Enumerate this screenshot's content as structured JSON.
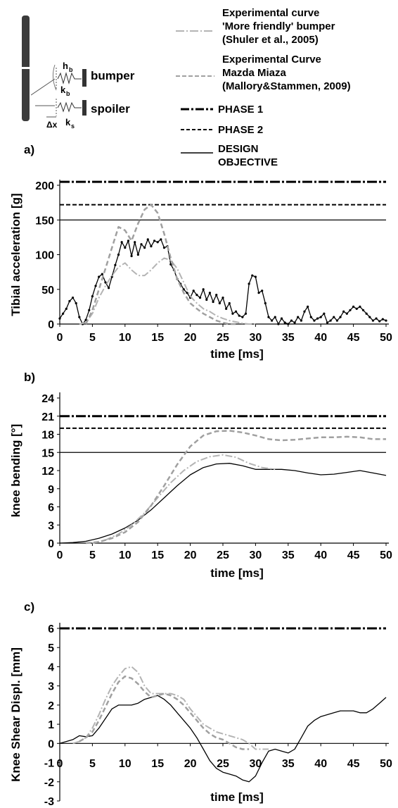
{
  "legend": {
    "exp1_line1": "Experimental curve",
    "exp1_line2": "'More friendly' bumper",
    "exp1_line3": "(Shuler et al., 2005)",
    "exp2_line1": "Experimental Curve",
    "exp2_line2": "Mazda Miaza",
    "exp2_line3": "(Mallory&Stammen, 2009)",
    "phase1": "PHASE 1",
    "phase2": "PHASE 2",
    "design_line1": "DESIGN",
    "design_line2": "OBJECTIVE"
  },
  "schematic": {
    "bumper": "bumper",
    "spoiler": "spoiler",
    "hb": "h",
    "hb_sub": "b",
    "kb": "k",
    "kb_sub": "b",
    "ks": "k",
    "ks_sub": "s",
    "dx": "Δx"
  },
  "colors": {
    "measured": "#000000",
    "exp1": "#b4b4b4",
    "exp2": "#a0a0a0",
    "thresholds": "#000000"
  },
  "chart_data": [
    {
      "type": "line",
      "panel_label": "a)",
      "xlabel": "time [ms]",
      "ylabel": "Tibial acceleration [g]",
      "xlim": [
        0,
        50
      ],
      "ylim": [
        0,
        200
      ],
      "xticks": [
        0,
        5,
        10,
        15,
        20,
        25,
        30,
        35,
        40,
        45,
        50
      ],
      "xtick_labels": [
        "0",
        "5",
        "10",
        "15",
        "20",
        "25",
        "30",
        "35",
        "40",
        "45",
        "50"
      ],
      "yticks": [
        0,
        50,
        100,
        150,
        200
      ],
      "ytick_labels": [
        "0",
        "50",
        "100",
        "150",
        "200"
      ],
      "thresholds": [
        {
          "name": "PHASE 1",
          "style": "dashdot",
          "y": 205
        },
        {
          "name": "PHASE 2",
          "style": "dash",
          "y": 172
        },
        {
          "name": "DESIGN OBJECTIVE",
          "style": "solid",
          "y": 150
        }
      ],
      "series": [
        {
          "style": "measured",
          "markers": true,
          "x": [
            0,
            0.5,
            1,
            1.5,
            2,
            2.5,
            3,
            3.5,
            4,
            4.5,
            5,
            5.5,
            6,
            6.5,
            7,
            7.5,
            8,
            8.5,
            9,
            9.5,
            10,
            10.5,
            11,
            11.5,
            12,
            12.5,
            13,
            13.5,
            14,
            14.5,
            15,
            15.5,
            16,
            16.5,
            17,
            17.5,
            18,
            18.5,
            19,
            19.5,
            20,
            20.5,
            21,
            21.5,
            22,
            22.5,
            23,
            23.5,
            24,
            24.5,
            25,
            25.5,
            26,
            26.5,
            27,
            27.5,
            28,
            28.5,
            29,
            29.5,
            30,
            30.5,
            31,
            31.5,
            32,
            32.5,
            33,
            33.5,
            34,
            34.5,
            35,
            35.5,
            36,
            36.5,
            37,
            37.5,
            38,
            38.5,
            39,
            39.5,
            40,
            40.5,
            41,
            41.5,
            42,
            42.5,
            43,
            43.5,
            44,
            44.5,
            45,
            45.5,
            46,
            46.5,
            47,
            47.5,
            48,
            48.5,
            49,
            49.5,
            50
          ],
          "y": [
            8,
            15,
            22,
            33,
            38,
            30,
            10,
            0,
            6,
            20,
            40,
            55,
            68,
            72,
            60,
            52,
            68,
            85,
            100,
            118,
            110,
            120,
            98,
            118,
            100,
            115,
            110,
            122,
            112,
            120,
            118,
            122,
            110,
            112,
            86,
            78,
            65,
            58,
            50,
            45,
            38,
            48,
            42,
            38,
            50,
            35,
            45,
            32,
            42,
            30,
            38,
            22,
            30,
            15,
            18,
            12,
            10,
            15,
            58,
            70,
            68,
            45,
            48,
            30,
            10,
            5,
            10,
            0,
            8,
            2,
            0,
            5,
            2,
            10,
            5,
            18,
            25,
            10,
            5,
            8,
            10,
            15,
            2,
            5,
            10,
            5,
            10,
            18,
            15,
            20,
            25,
            22,
            25,
            20,
            15,
            10,
            5,
            8,
            4,
            7,
            5
          ]
        },
        {
          "style": "exp1",
          "markers": false,
          "x": [
            3,
            4,
            5,
            6,
            7,
            8,
            9,
            10,
            11,
            12,
            13,
            14,
            15,
            16,
            17,
            18,
            19,
            20,
            21,
            22,
            23,
            24,
            25,
            26,
            27,
            28,
            29,
            30
          ],
          "y": [
            0,
            2,
            15,
            38,
            55,
            70,
            82,
            88,
            78,
            70,
            70,
            78,
            88,
            95,
            92,
            80,
            60,
            40,
            30,
            22,
            18,
            12,
            8,
            5,
            3,
            1,
            0,
            0
          ]
        },
        {
          "style": "exp2",
          "markers": false,
          "x": [
            4,
            5,
            6,
            7,
            8,
            9,
            10,
            11,
            12,
            13,
            14,
            15,
            16,
            17,
            18,
            19,
            20,
            21,
            22,
            23,
            24,
            25,
            26,
            27
          ],
          "y": [
            0,
            20,
            50,
            80,
            110,
            140,
            135,
            120,
            145,
            165,
            172,
            160,
            130,
            95,
            65,
            45,
            30,
            22,
            15,
            10,
            5,
            2,
            0,
            0
          ]
        }
      ]
    },
    {
      "type": "line",
      "panel_label": "b)",
      "xlabel": "time [ms]",
      "ylabel": "knee bending [°]",
      "xlim": [
        0,
        50
      ],
      "ylim": [
        0,
        24
      ],
      "xticks": [
        0,
        5,
        10,
        15,
        20,
        25,
        30,
        35,
        40,
        45,
        50
      ],
      "xtick_labels": [
        "0",
        "5",
        "10",
        "15",
        "20",
        "25",
        "30",
        "35",
        "40",
        "45",
        "50"
      ],
      "yticks": [
        0,
        3,
        6,
        9,
        12,
        15,
        18,
        21,
        24
      ],
      "ytick_labels": [
        "0",
        "3",
        "6",
        "9",
        "12",
        "15",
        "18",
        "21",
        "24"
      ],
      "thresholds": [
        {
          "name": "PHASE 1",
          "style": "dashdot",
          "y": 21
        },
        {
          "name": "PHASE 2",
          "style": "dash",
          "y": 19
        },
        {
          "name": "DESIGN OBJECTIVE",
          "style": "solid",
          "y": 15
        }
      ],
      "series": [
        {
          "style": "measured",
          "markers": false,
          "x": [
            0,
            2,
            4,
            6,
            8,
            10,
            12,
            14,
            16,
            18,
            20,
            22,
            24,
            26,
            28,
            30,
            32,
            34,
            36,
            38,
            40,
            42,
            44,
            46,
            48,
            50
          ],
          "y": [
            0,
            0.1,
            0.3,
            0.8,
            1.5,
            2.5,
            3.8,
            5.5,
            7.5,
            9.5,
            11.3,
            12.5,
            13.1,
            13.2,
            12.8,
            12.2,
            12.2,
            12.2,
            12,
            11.6,
            11.3,
            11.4,
            11.7,
            12,
            11.6,
            11.2
          ]
        },
        {
          "style": "exp1",
          "markers": false,
          "x": [
            5,
            7,
            9,
            11,
            13,
            15,
            17,
            19,
            21,
            23,
            25,
            27,
            29,
            31,
            33
          ],
          "y": [
            0,
            0.5,
            1.5,
            3,
            5,
            7.5,
            10,
            12,
            13.5,
            14.3,
            14.6,
            14.2,
            13.2,
            12.5,
            12.2
          ]
        },
        {
          "style": "exp2",
          "markers": false,
          "x": [
            4,
            6,
            8,
            10,
            12,
            14,
            16,
            18,
            20,
            22,
            24,
            26,
            28,
            30,
            32,
            34,
            36,
            38,
            40,
            42,
            44,
            46,
            48,
            50
          ],
          "y": [
            0,
            0.2,
            0.8,
            1.8,
            3.5,
            6.2,
            9.5,
            13,
            16,
            17.8,
            18.5,
            18.6,
            18.3,
            17.8,
            17.2,
            17,
            17.1,
            17.3,
            17.5,
            17.5,
            17.6,
            17.5,
            17.2,
            17.2
          ]
        }
      ]
    },
    {
      "type": "line",
      "panel_label": "c)",
      "xlabel": "time [ms]",
      "ylabel": "Knee Shear Displ. [mm]",
      "xlim": [
        0,
        50
      ],
      "ylim": [
        -3,
        6
      ],
      "xticks": [
        0,
        5,
        10,
        15,
        20,
        25,
        30,
        35,
        40,
        45,
        50
      ],
      "xtick_labels": [
        "0",
        "5",
        "10",
        "15",
        "20",
        "25",
        "30",
        "35",
        "40",
        "45",
        "50"
      ],
      "yticks": [
        -3,
        -2,
        -1,
        0,
        1,
        2,
        3,
        4,
        5,
        6
      ],
      "ytick_labels": [
        "-3",
        "-2",
        "-1",
        "0",
        "1",
        "2",
        "3",
        "4",
        "5",
        "6"
      ],
      "thresholds": [
        {
          "name": "PHASE 1",
          "style": "dashdot",
          "y": 6
        }
      ],
      "series": [
        {
          "style": "measured",
          "markers": false,
          "x": [
            0,
            1,
            2,
            3,
            4,
            5,
            6,
            7,
            8,
            9,
            10,
            11,
            12,
            13,
            14,
            15,
            16,
            17,
            18,
            19,
            20,
            21,
            22,
            23,
            24,
            25,
            26,
            27,
            28,
            29,
            30,
            31,
            32,
            33,
            34,
            35,
            36,
            37,
            38,
            39,
            40,
            41,
            42,
            43,
            44,
            45,
            46,
            47,
            48,
            49,
            50
          ],
          "y": [
            0,
            0.1,
            0.2,
            0.4,
            0.35,
            0.4,
            0.8,
            1.3,
            1.8,
            2,
            2,
            2,
            2.1,
            2.3,
            2.4,
            2.5,
            2.3,
            2,
            1.6,
            1.2,
            0.8,
            0.3,
            -0.3,
            -0.9,
            -1.3,
            -1.5,
            -1.6,
            -1.7,
            -1.9,
            -2,
            -1.7,
            -1,
            -0.4,
            -0.3,
            -0.4,
            -0.5,
            -0.3,
            0.3,
            0.9,
            1.2,
            1.4,
            1.5,
            1.6,
            1.7,
            1.7,
            1.7,
            1.6,
            1.6,
            1.8,
            2.1,
            2.4
          ]
        },
        {
          "style": "exp1",
          "markers": false,
          "x": [
            2,
            3,
            4,
            5,
            6,
            7,
            8,
            9,
            10,
            11,
            12,
            13,
            14,
            15,
            16,
            17,
            18,
            19,
            20,
            21,
            22,
            23,
            24,
            25,
            26,
            27,
            28,
            29,
            30,
            31,
            32
          ],
          "y": [
            0,
            0.1,
            0.3,
            0.8,
            1.5,
            2.3,
            3,
            3.5,
            3.9,
            4,
            3.7,
            3,
            2.6,
            2.6,
            2.6,
            2.6,
            2.5,
            2.3,
            1.8,
            1.4,
            1,
            0.8,
            0.6,
            0.5,
            0.4,
            0.3,
            0.2,
            0,
            -0.3,
            -0.3,
            -0.3
          ]
        },
        {
          "style": "exp2",
          "markers": false,
          "x": [
            3,
            4,
            5,
            6,
            7,
            8,
            9,
            10,
            11,
            12,
            13,
            14,
            15,
            16,
            17,
            18,
            19,
            20,
            21,
            22,
            23,
            24,
            25,
            26,
            27,
            28,
            29
          ],
          "y": [
            0.1,
            0.3,
            0.6,
            1.2,
            1.9,
            2.6,
            3.2,
            3.5,
            3.4,
            3.1,
            2.7,
            2.4,
            2.5,
            2.6,
            2.5,
            2.3,
            2,
            1.6,
            1.2,
            0.8,
            0.5,
            0.3,
            0.2,
            0,
            -0.2,
            -0.3,
            -0.3
          ]
        }
      ]
    }
  ]
}
